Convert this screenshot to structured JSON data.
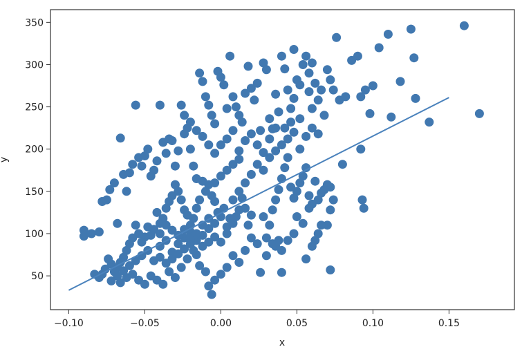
{
  "chart_data": {
    "type": "scatter",
    "xlabel": "x",
    "ylabel": "y",
    "xlim": [
      -0.112,
      0.193
    ],
    "ylim": [
      10,
      365
    ],
    "x_ticks": [
      -0.1,
      -0.05,
      0.0,
      0.05,
      0.1,
      0.15
    ],
    "x_tick_labels": [
      "−0.10",
      "−0.05",
      "0.00",
      "0.05",
      "0.10",
      "0.15"
    ],
    "y_ticks": [
      50,
      100,
      150,
      200,
      250,
      300,
      350
    ],
    "y_tick_labels": [
      "50",
      "100",
      "150",
      "200",
      "250",
      "300",
      "350"
    ],
    "grid": false,
    "colors": {
      "points": "#4178b0",
      "line": "#4a82bc",
      "axes": "#333333"
    },
    "series": [
      {
        "type": "scatter",
        "points": [
          [
            -0.09,
            104
          ],
          [
            -0.09,
            97
          ],
          [
            -0.085,
            100
          ],
          [
            -0.08,
            102
          ],
          [
            -0.083,
            52
          ],
          [
            -0.078,
            138
          ],
          [
            -0.075,
            140
          ],
          [
            -0.073,
            152
          ],
          [
            -0.07,
            160
          ],
          [
            -0.068,
            112
          ],
          [
            -0.066,
            213
          ],
          [
            -0.064,
            170
          ],
          [
            -0.062,
            150
          ],
          [
            -0.06,
            172
          ],
          [
            -0.058,
            182
          ],
          [
            -0.056,
            252
          ],
          [
            -0.054,
            190
          ],
          [
            -0.052,
            180
          ],
          [
            -0.05,
            192
          ],
          [
            -0.048,
            200
          ],
          [
            -0.046,
            168
          ],
          [
            -0.044,
            175
          ],
          [
            -0.042,
            186
          ],
          [
            -0.04,
            252
          ],
          [
            -0.038,
            208
          ],
          [
            -0.036,
            195
          ],
          [
            -0.034,
            212
          ],
          [
            -0.032,
            210
          ],
          [
            -0.03,
            180
          ],
          [
            -0.028,
            198
          ],
          [
            -0.026,
            252
          ],
          [
            -0.024,
            218
          ],
          [
            -0.022,
            225
          ],
          [
            -0.02,
            200
          ],
          [
            -0.018,
            180
          ],
          [
            -0.016,
            165
          ],
          [
            -0.014,
            290
          ],
          [
            -0.012,
            280
          ],
          [
            -0.01,
            262
          ],
          [
            -0.008,
            252
          ],
          [
            -0.006,
            240
          ],
          [
            -0.004,
            230
          ],
          [
            -0.002,
            292
          ],
          [
            0.0,
            285
          ],
          [
            0.002,
            276
          ],
          [
            0.004,
            248
          ],
          [
            0.006,
            310
          ],
          [
            0.008,
            262
          ],
          [
            0.01,
            250
          ],
          [
            0.012,
            240
          ],
          [
            0.014,
            232
          ],
          [
            0.016,
            266
          ],
          [
            0.018,
            298
          ],
          [
            0.02,
            272
          ],
          [
            0.022,
            258
          ],
          [
            0.024,
            278
          ],
          [
            0.026,
            222
          ],
          [
            0.028,
            302
          ],
          [
            0.03,
            294
          ],
          [
            0.032,
            236
          ],
          [
            0.034,
            224
          ],
          [
            0.036,
            265
          ],
          [
            0.038,
            244
          ],
          [
            0.04,
            310
          ],
          [
            0.042,
            295
          ],
          [
            0.044,
            270
          ],
          [
            0.046,
            248
          ],
          [
            0.048,
            318
          ],
          [
            0.05,
            282
          ],
          [
            0.052,
            236
          ],
          [
            0.054,
            300
          ],
          [
            0.056,
            310
          ],
          [
            0.058,
            268
          ],
          [
            0.06,
            248
          ],
          [
            0.062,
            278
          ],
          [
            0.064,
            258
          ],
          [
            0.066,
            270
          ],
          [
            0.068,
            240
          ],
          [
            0.07,
            294
          ],
          [
            0.072,
            282
          ],
          [
            0.074,
            270
          ],
          [
            0.076,
            332
          ],
          [
            0.078,
            258
          ],
          [
            0.082,
            262
          ],
          [
            0.086,
            305
          ],
          [
            0.09,
            310
          ],
          [
            0.092,
            262
          ],
          [
            0.095,
            270
          ],
          [
            0.098,
            242
          ],
          [
            0.1,
            275
          ],
          [
            0.104,
            320
          ],
          [
            0.11,
            336
          ],
          [
            0.112,
            238
          ],
          [
            0.118,
            280
          ],
          [
            0.125,
            342
          ],
          [
            0.127,
            308
          ],
          [
            0.128,
            260
          ],
          [
            0.137,
            232
          ],
          [
            0.16,
            346
          ],
          [
            0.17,
            242
          ],
          [
            0.092,
            200
          ],
          [
            0.093,
            140
          ],
          [
            0.094,
            130
          ],
          [
            0.08,
            182
          ],
          [
            0.072,
            155
          ],
          [
            0.074,
            140
          ],
          [
            0.072,
            128
          ],
          [
            0.07,
            110
          ],
          [
            0.066,
            110
          ],
          [
            0.064,
            100
          ],
          [
            0.062,
            92
          ],
          [
            0.06,
            85
          ],
          [
            0.056,
            70
          ],
          [
            0.072,
            57
          ],
          [
            0.07,
            158
          ],
          [
            0.068,
            152
          ],
          [
            0.066,
            148
          ],
          [
            0.064,
            140
          ],
          [
            0.062,
            162
          ],
          [
            0.06,
            135
          ],
          [
            0.058,
            145
          ],
          [
            0.056,
            178
          ],
          [
            0.054,
            168
          ],
          [
            0.052,
            160
          ],
          [
            0.05,
            150
          ],
          [
            0.048,
            142
          ],
          [
            0.046,
            155
          ],
          [
            0.044,
            190
          ],
          [
            0.042,
            178
          ],
          [
            0.04,
            165
          ],
          [
            0.038,
            152
          ],
          [
            0.036,
            140
          ],
          [
            0.034,
            128
          ],
          [
            0.032,
            110
          ],
          [
            0.03,
            95
          ],
          [
            0.028,
            120
          ],
          [
            0.04,
            54
          ],
          [
            0.036,
            85
          ],
          [
            0.038,
            92
          ],
          [
            0.034,
            88
          ],
          [
            0.03,
            74
          ],
          [
            0.026,
            54
          ],
          [
            0.02,
            122
          ],
          [
            0.018,
            110
          ],
          [
            0.016,
            130
          ],
          [
            0.014,
            142
          ],
          [
            0.012,
            128
          ],
          [
            0.01,
            120
          ],
          [
            0.008,
            112
          ],
          [
            0.006,
            118
          ],
          [
            0.004,
            108
          ],
          [
            0.002,
            130
          ],
          [
            0.0,
            120
          ],
          [
            -0.002,
            125
          ],
          [
            -0.004,
            138
          ],
          [
            -0.006,
            145
          ],
          [
            -0.008,
            158
          ],
          [
            -0.01,
            150
          ],
          [
            -0.012,
            162
          ],
          [
            -0.014,
            140
          ],
          [
            -0.016,
            130
          ],
          [
            -0.018,
            118
          ],
          [
            -0.02,
            110
          ],
          [
            -0.022,
            122
          ],
          [
            -0.024,
            128
          ],
          [
            -0.026,
            140
          ],
          [
            -0.028,
            150
          ],
          [
            -0.03,
            158
          ],
          [
            -0.032,
            145
          ],
          [
            -0.034,
            138
          ],
          [
            -0.036,
            130
          ],
          [
            -0.038,
            118
          ],
          [
            -0.04,
            112
          ],
          [
            -0.042,
            125
          ],
          [
            -0.044,
            105
          ],
          [
            -0.046,
            98
          ],
          [
            -0.048,
            108
          ],
          [
            -0.05,
            96
          ],
          [
            -0.052,
            90
          ],
          [
            -0.054,
            100
          ],
          [
            -0.056,
            110
          ],
          [
            -0.058,
            95
          ],
          [
            -0.06,
            88
          ],
          [
            -0.062,
            80
          ],
          [
            -0.064,
            72
          ],
          [
            -0.066,
            66
          ],
          [
            -0.068,
            60
          ],
          [
            -0.07,
            55
          ],
          [
            -0.072,
            64
          ],
          [
            -0.074,
            70
          ],
          [
            -0.076,
            58
          ],
          [
            -0.078,
            52
          ],
          [
            -0.08,
            48
          ],
          [
            -0.066,
            42
          ],
          [
            -0.062,
            48
          ],
          [
            -0.058,
            52
          ],
          [
            -0.054,
            45
          ],
          [
            -0.05,
            40
          ],
          [
            -0.046,
            50
          ],
          [
            -0.042,
            45
          ],
          [
            -0.038,
            40
          ],
          [
            -0.034,
            55
          ],
          [
            -0.03,
            48
          ],
          [
            -0.026,
            60
          ],
          [
            -0.022,
            70
          ],
          [
            -0.018,
            80
          ],
          [
            -0.014,
            62
          ],
          [
            -0.01,
            55
          ],
          [
            -0.008,
            38
          ],
          [
            -0.006,
            28
          ],
          [
            -0.004,
            45
          ],
          [
            0.0,
            52
          ],
          [
            0.004,
            60
          ],
          [
            0.008,
            74
          ],
          [
            0.012,
            66
          ],
          [
            0.016,
            80
          ],
          [
            0.02,
            95
          ],
          [
            0.024,
            88
          ],
          [
            -0.04,
            85
          ],
          [
            -0.036,
            92
          ],
          [
            -0.032,
            78
          ],
          [
            -0.028,
            88
          ],
          [
            -0.024,
            95
          ],
          [
            -0.02,
            102
          ],
          [
            -0.016,
            92
          ],
          [
            -0.012,
            98
          ],
          [
            -0.008,
            106
          ],
          [
            -0.004,
            112
          ],
          [
            -0.044,
            68
          ],
          [
            -0.04,
            72
          ],
          [
            -0.036,
            65
          ],
          [
            -0.032,
            70
          ],
          [
            -0.028,
            76
          ],
          [
            -0.024,
            82
          ],
          [
            -0.02,
            88
          ],
          [
            -0.016,
            75
          ],
          [
            -0.012,
            85
          ],
          [
            -0.008,
            90
          ],
          [
            -0.048,
            80
          ],
          [
            -0.052,
            74
          ],
          [
            -0.056,
            68
          ],
          [
            -0.06,
            62
          ],
          [
            -0.064,
            56
          ],
          [
            -0.068,
            50
          ],
          [
            -0.072,
            44
          ],
          [
            -0.04,
            100
          ],
          [
            -0.036,
            110
          ],
          [
            -0.032,
            104
          ],
          [
            -0.028,
            98
          ],
          [
            -0.024,
            105
          ],
          [
            -0.02,
            95
          ],
          [
            -0.016,
            100
          ],
          [
            -0.012,
            110
          ],
          [
            -0.008,
            118
          ],
          [
            -0.004,
            96
          ],
          [
            0.0,
            90
          ],
          [
            0.004,
            100
          ],
          [
            0.008,
            140
          ],
          [
            0.012,
            150
          ],
          [
            0.016,
            160
          ],
          [
            0.02,
            170
          ],
          [
            0.024,
            182
          ],
          [
            0.028,
            175
          ],
          [
            0.032,
            190
          ],
          [
            0.036,
            198
          ],
          [
            0.04,
            205
          ],
          [
            0.044,
            212
          ],
          [
            0.048,
            220
          ],
          [
            0.052,
            200
          ],
          [
            0.056,
            215
          ],
          [
            0.06,
            225
          ],
          [
            0.064,
            218
          ],
          [
            0.012,
            198
          ],
          [
            0.016,
            210
          ],
          [
            0.02,
            218
          ],
          [
            0.024,
            205
          ],
          [
            0.028,
            196
          ],
          [
            0.032,
            212
          ],
          [
            0.036,
            225
          ],
          [
            0.0,
            205
          ],
          [
            0.004,
            212
          ],
          [
            0.008,
            222
          ],
          [
            -0.004,
            195
          ],
          [
            -0.008,
            205
          ],
          [
            -0.012,
            215
          ],
          [
            -0.016,
            222
          ],
          [
            -0.02,
            232
          ],
          [
            -0.024,
            240
          ],
          [
            0.004,
            175
          ],
          [
            0.0,
            168
          ],
          [
            -0.004,
            160
          ],
          [
            0.008,
            182
          ],
          [
            0.012,
            188
          ],
          [
            0.048,
            260
          ],
          [
            0.052,
            276
          ],
          [
            0.058,
            290
          ],
          [
            0.06,
            302
          ],
          [
            0.046,
            232
          ],
          [
            0.042,
            225
          ],
          [
            0.05,
            120
          ],
          [
            0.054,
            112
          ],
          [
            0.058,
            130
          ],
          [
            0.048,
            100
          ],
          [
            0.044,
            92
          ],
          [
            0.04,
            80
          ]
        ]
      },
      {
        "type": "line",
        "points": [
          [
            -0.1,
            33
          ],
          [
            0.15,
            261
          ]
        ]
      }
    ]
  }
}
